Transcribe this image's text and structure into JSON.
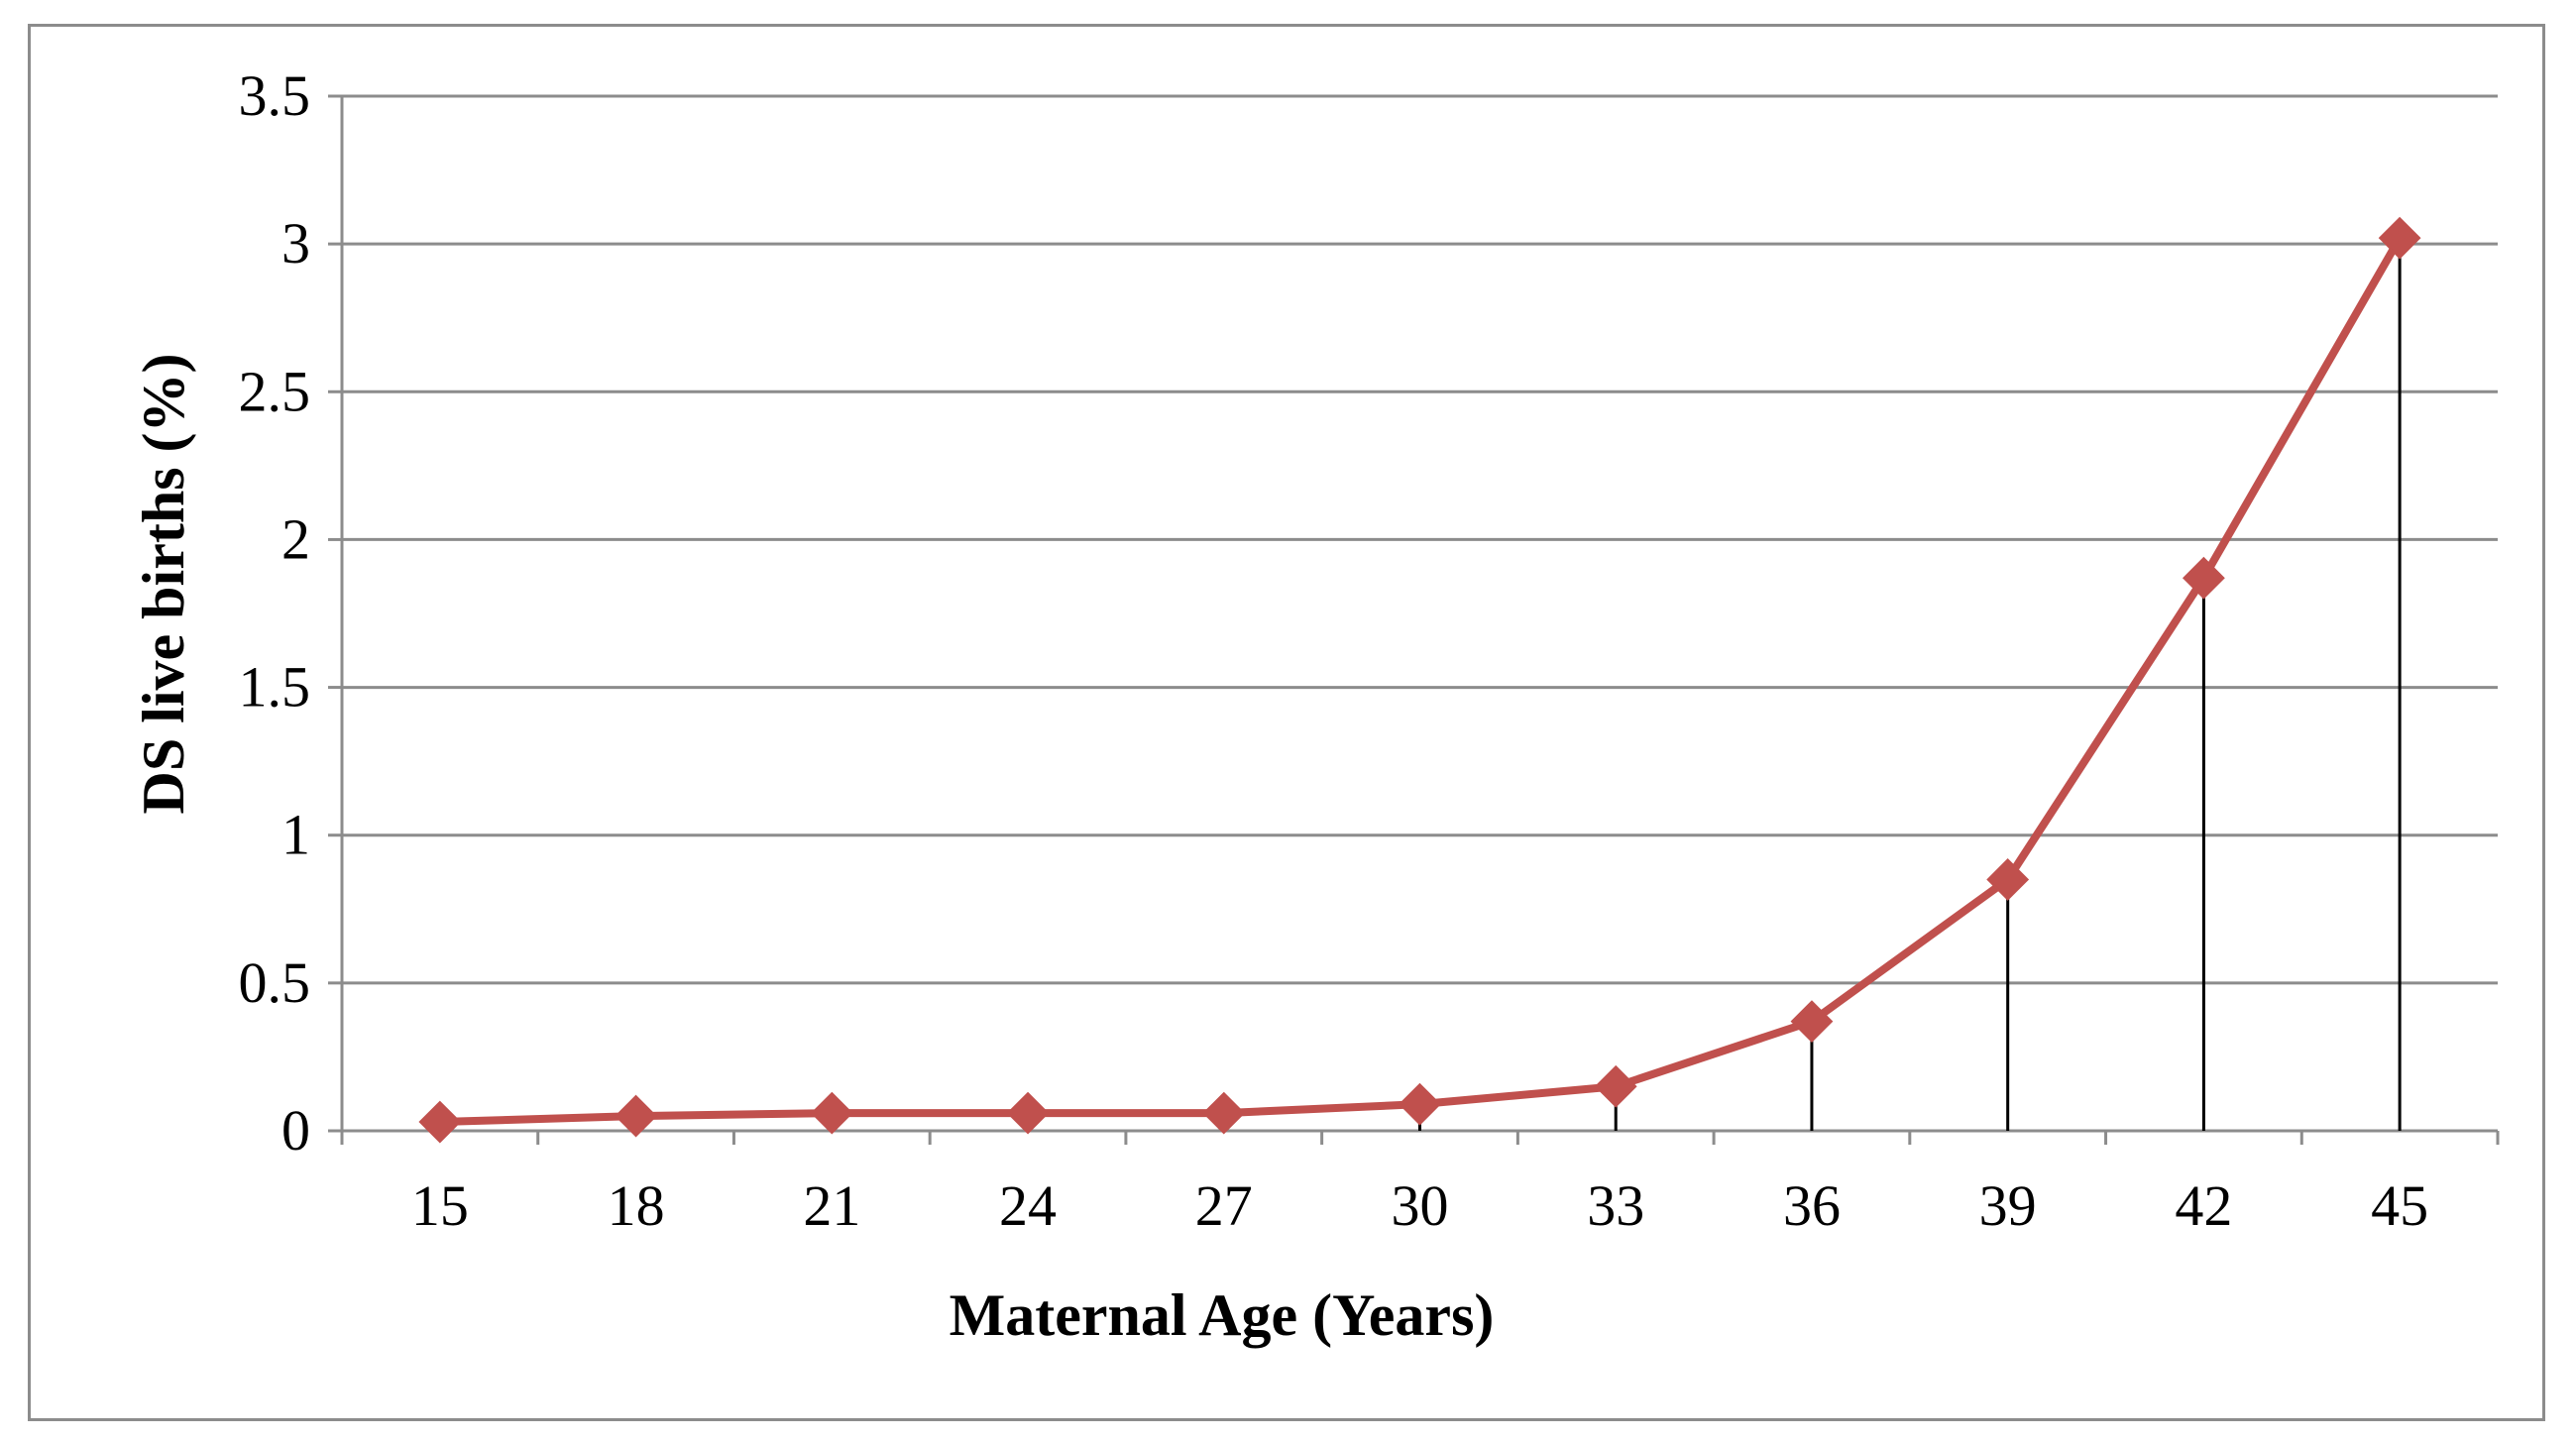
{
  "chart_data": {
    "type": "line",
    "title": "",
    "xlabel": "Maternal Age (Years)",
    "ylabel": "DS live births (%)",
    "x": [
      15,
      18,
      21,
      24,
      27,
      30,
      33,
      36,
      39,
      42,
      45
    ],
    "x_tick_labels": [
      "15",
      "18",
      "21",
      "24",
      "27",
      "30",
      "33",
      "36",
      "39",
      "42",
      "45"
    ],
    "series": [
      {
        "values": [
          0.03,
          0.05,
          0.06,
          0.06,
          0.06,
          0.09,
          0.15,
          0.37,
          0.85,
          1.87,
          3.02
        ]
      }
    ],
    "ylim": [
      0,
      3.5
    ],
    "y_ticks": [
      0,
      0.5,
      1,
      1.5,
      2,
      2.5,
      3,
      3.5
    ],
    "y_tick_labels": [
      "0",
      "0.5",
      "1",
      "1.5",
      "2",
      "2.5",
      "3",
      "3.5"
    ],
    "grid": true,
    "drop_lines": true,
    "marker": "diamond",
    "legend": "none",
    "colors": {
      "series": "#c0504d",
      "grid": "#8c8c8c",
      "drop_line": "#000000"
    }
  }
}
